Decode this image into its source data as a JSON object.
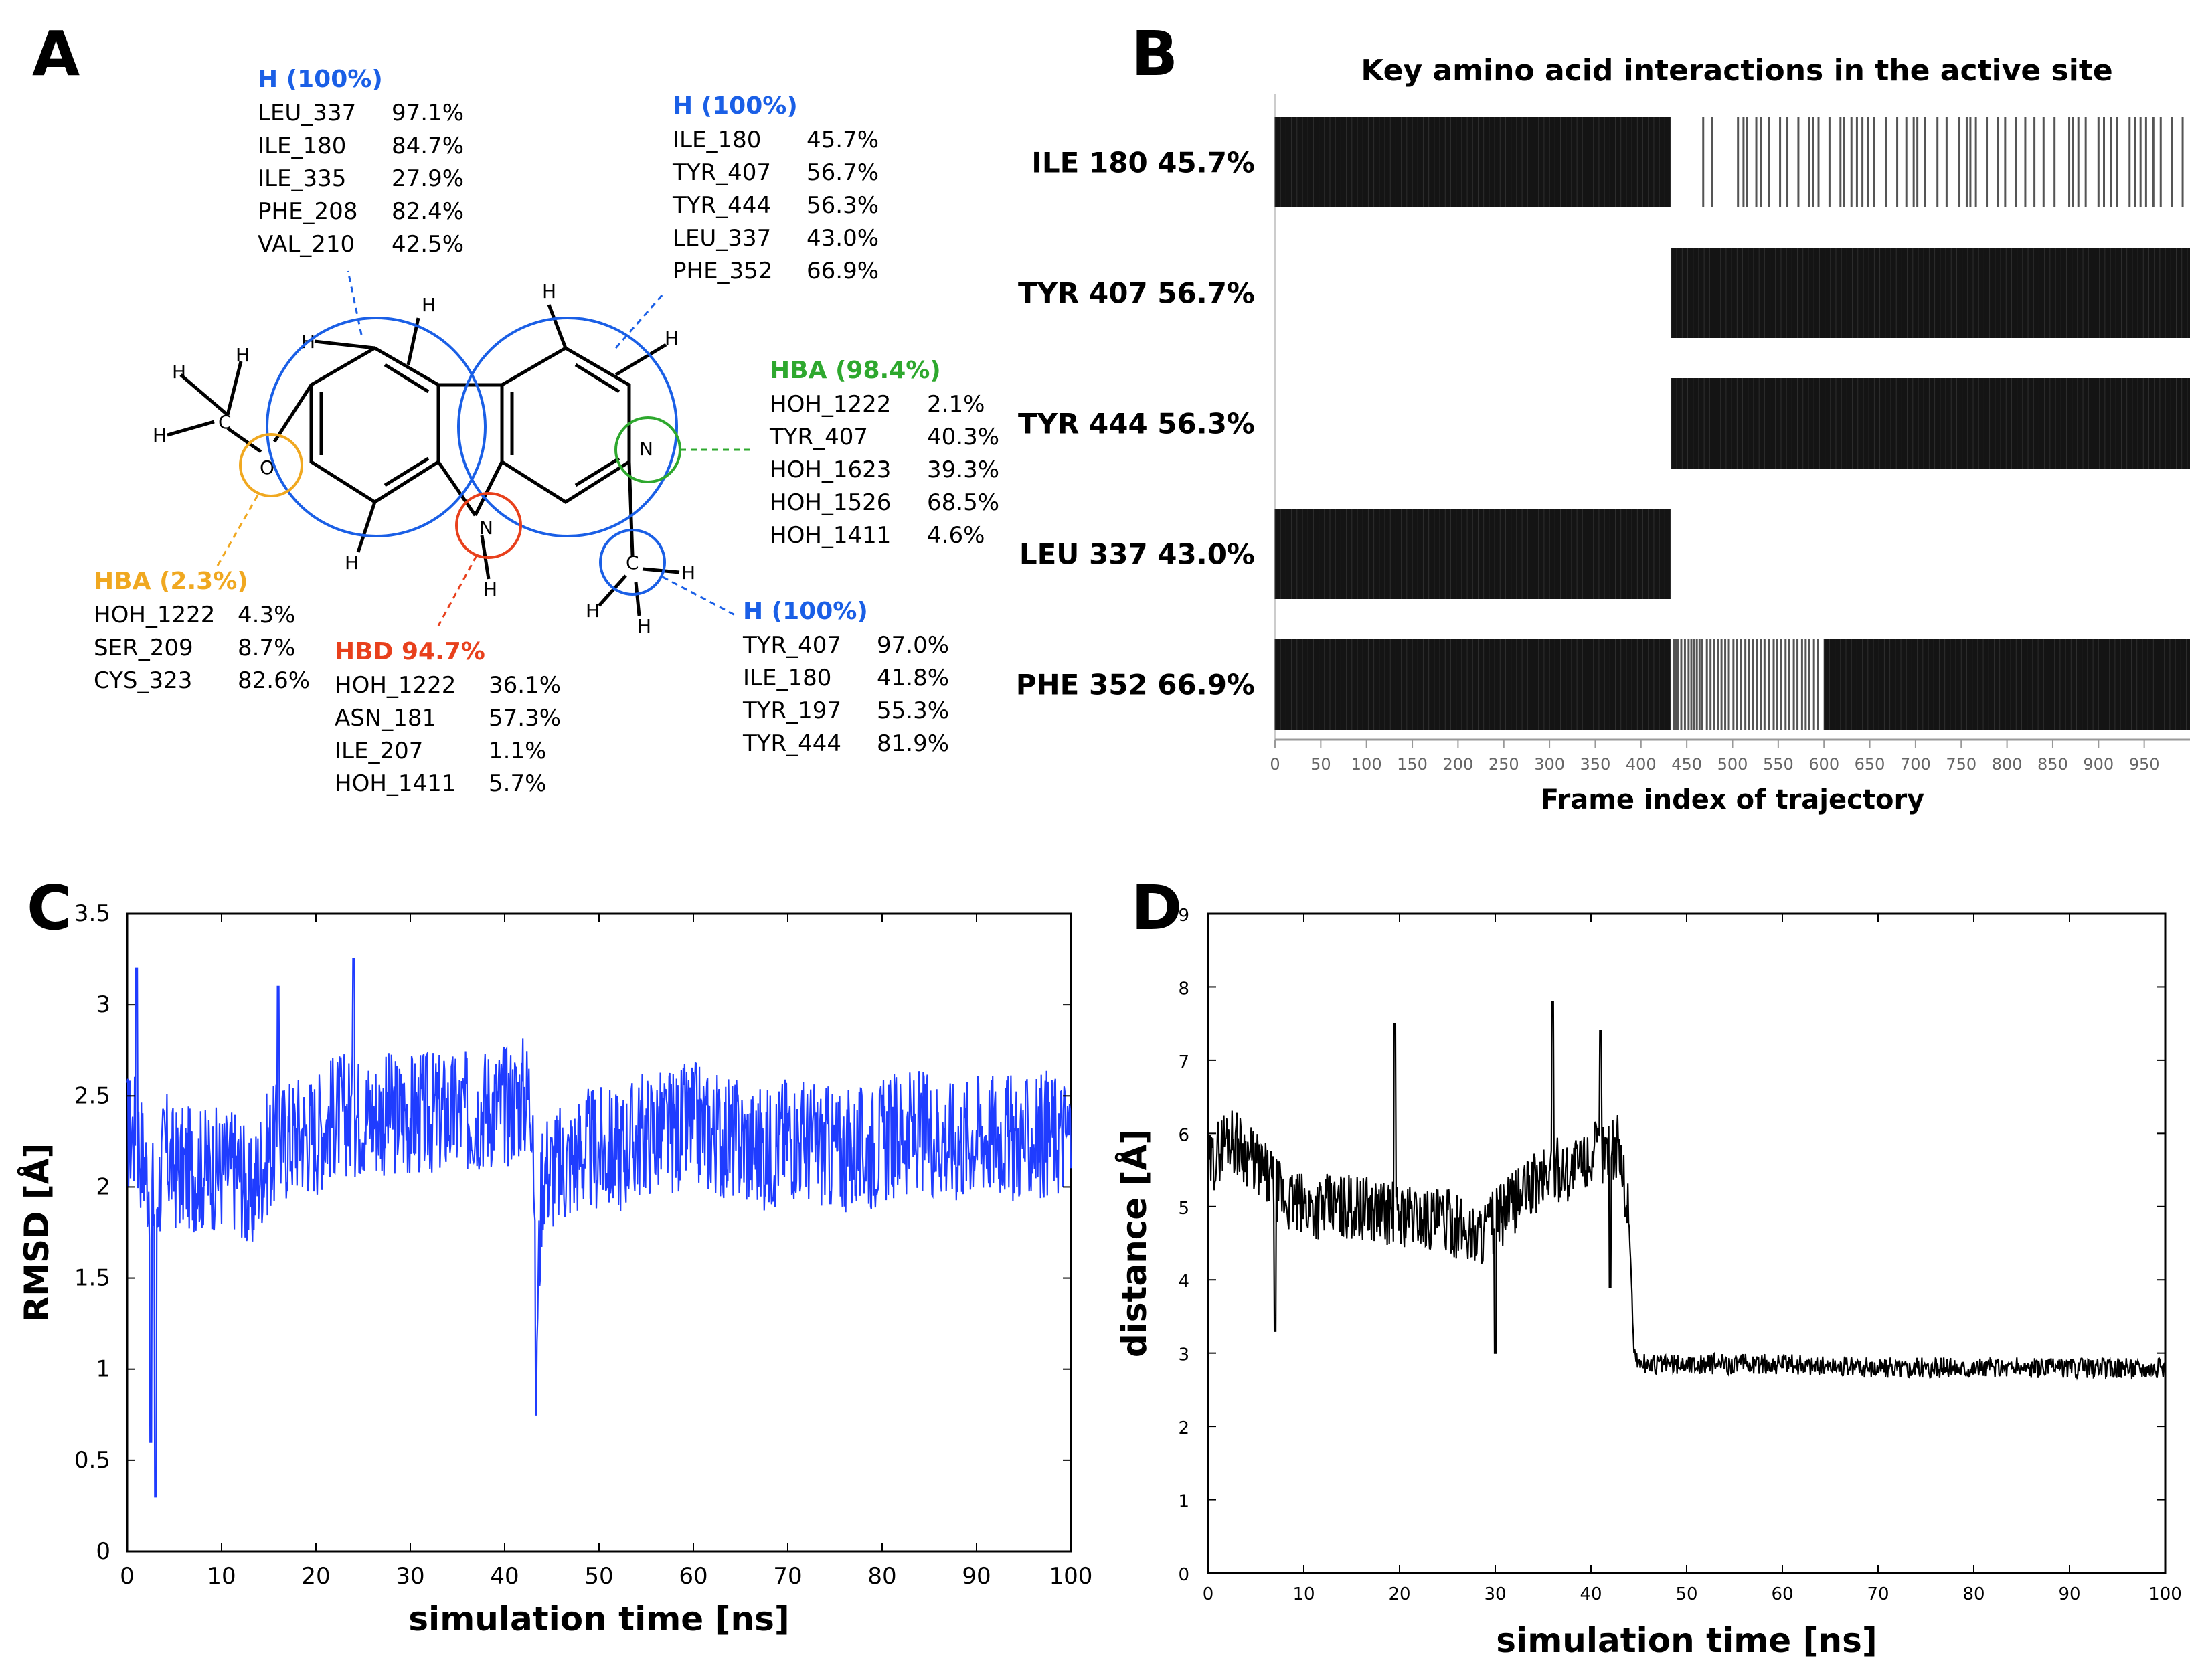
{
  "panels": {
    "A": "A",
    "B": "B",
    "C": "C",
    "D": "D"
  },
  "panelA": {
    "atoms": {
      "H": "H",
      "C": "C",
      "O": "O",
      "N": "N"
    },
    "groups": [
      {
        "id": "hyd_left",
        "title": "H (100%)",
        "color": "#1a5fe6",
        "rows": [
          [
            "LEU_337",
            "97.1%"
          ],
          [
            "ILE_180",
            "84.7%"
          ],
          [
            "ILE_335",
            "27.9%"
          ],
          [
            "PHE_208",
            "82.4%"
          ],
          [
            "VAL_210",
            "42.5%"
          ]
        ]
      },
      {
        "id": "hyd_right",
        "title": "H (100%)",
        "color": "#1a5fe6",
        "rows": [
          [
            "ILE_180",
            "45.7%"
          ],
          [
            "TYR_407",
            "56.7%"
          ],
          [
            "TYR_444",
            "56.3%"
          ],
          [
            "LEU_337",
            "43.0%"
          ],
          [
            "PHE_352",
            "66.9%"
          ]
        ]
      },
      {
        "id": "hba_n",
        "title": "HBA (98.4%)",
        "color": "#2ea82e",
        "rows": [
          [
            "HOH_1222",
            "2.1%"
          ],
          [
            "TYR_407",
            "40.3%"
          ],
          [
            "HOH_1623",
            "39.3%"
          ],
          [
            "HOH_1526",
            "68.5%"
          ],
          [
            "HOH_1411",
            "4.6%"
          ]
        ]
      },
      {
        "id": "hba_o",
        "title": "HBA (2.3%)",
        "color": "#f0a820",
        "rows": [
          [
            "HOH_1222",
            "4.3%"
          ],
          [
            "SER_209",
            "8.7%"
          ],
          [
            "CYS_323",
            "82.6%"
          ]
        ]
      },
      {
        "id": "hbd",
        "title": "HBD 94.7%",
        "color": "#e8401c",
        "rows": [
          [
            "HOH_1222",
            "36.1%"
          ],
          [
            "ASN_181",
            "57.3%"
          ],
          [
            "ILE_207",
            "1.1%"
          ],
          [
            "HOH_1411",
            "5.7%"
          ]
        ]
      },
      {
        "id": "hyd_methyl",
        "title": "H (100%)",
        "color": "#1a5fe6",
        "rows": [
          [
            "TYR_407",
            "97.0%"
          ],
          [
            "ILE_180",
            "41.8%"
          ],
          [
            "TYR_197",
            "55.3%"
          ],
          [
            "TYR_444",
            "81.9%"
          ]
        ]
      }
    ]
  },
  "chart_data": [
    {
      "type": "heatmap",
      "panel": "B",
      "title": "Key amino acid interactions in the active site",
      "xlabel": "Frame index of trajectory",
      "xlim": [
        0,
        1000
      ],
      "xticks": [
        0,
        50,
        100,
        150,
        200,
        250,
        300,
        350,
        400,
        450,
        500,
        550,
        600,
        650,
        700,
        750,
        800,
        850,
        900,
        950
      ],
      "rows": [
        {
          "label": "ILE 180 45.7%",
          "solid": [
            [
              0,
              433
            ]
          ],
          "sparse_lines": [
            468,
            478,
            506,
            512,
            516,
            526,
            531,
            540,
            552,
            560,
            572,
            584,
            588,
            594,
            606,
            618,
            622,
            630,
            636,
            642,
            648,
            655,
            668,
            680,
            690,
            698,
            702,
            710,
            724,
            734,
            748,
            756,
            760,
            766,
            778,
            790,
            798,
            810,
            820,
            830,
            840,
            852,
            868,
            872,
            878,
            886,
            900,
            906,
            914,
            920,
            934,
            940,
            946,
            952,
            960,
            968,
            980,
            992
          ]
        },
        {
          "label": "TYR 407 56.7%",
          "solid": [
            [
              433,
              1000
            ]
          ],
          "sparse_lines": []
        },
        {
          "label": "TYR 444 56.3%",
          "solid": [
            [
              433,
              1000
            ]
          ],
          "sparse_lines": []
        },
        {
          "label": "LEU 337 43.0%",
          "solid": [
            [
              0,
              433
            ]
          ],
          "sparse_lines": []
        },
        {
          "label": "PHE 352 66.9%",
          "solid": [
            [
              0,
              433
            ],
            [
              600,
              1000
            ]
          ],
          "sparse_lines": [
            436,
            438,
            440,
            444,
            448,
            452,
            455,
            458,
            461,
            464,
            467,
            472,
            476,
            480,
            484,
            488,
            492,
            496,
            501,
            505,
            509,
            514,
            518,
            522,
            527,
            531,
            535,
            540,
            545,
            549,
            553,
            558,
            562,
            567,
            571,
            576,
            580,
            584,
            589,
            593
          ]
        }
      ]
    },
    {
      "type": "line",
      "panel": "C",
      "series_color": "#1f3cff",
      "xlabel": "simulation time [ns]",
      "ylabel": "RMSD [Å]",
      "xlim": [
        0,
        100
      ],
      "ylim": [
        0,
        3.5
      ],
      "xticks": [
        0,
        10,
        20,
        30,
        40,
        50,
        60,
        70,
        80,
        90,
        100
      ],
      "yticks": [
        0,
        0.5,
        1,
        1.5,
        2,
        2.5,
        3,
        3.5
      ],
      "series": [
        {
          "name": "RMSD",
          "x": [
            0,
            1,
            2,
            3,
            4,
            5,
            6,
            8,
            10,
            12,
            13,
            14,
            15,
            18,
            20,
            22,
            24,
            26,
            28,
            30,
            32,
            34,
            36,
            38,
            40,
            42,
            43,
            43.3,
            44,
            46,
            48,
            50,
            52,
            55,
            58,
            60,
            62,
            65,
            68,
            70,
            72,
            75,
            78,
            80,
            82,
            85,
            88,
            90,
            92,
            95,
            98,
            100
          ],
          "y": [
            2.3,
            2.3,
            2.1,
            1.9,
            2.2,
            2.1,
            2.1,
            2.1,
            2.1,
            2.1,
            1.9,
            2.1,
            2.2,
            2.3,
            2.3,
            2.4,
            2.4,
            2.4,
            2.4,
            2.4,
            2.4,
            2.4,
            2.4,
            2.45,
            2.45,
            2.5,
            2.5,
            1.1,
            2.1,
            2.1,
            2.2,
            2.2,
            2.2,
            2.3,
            2.3,
            2.35,
            2.3,
            2.25,
            2.2,
            2.3,
            2.25,
            2.2,
            2.2,
            2.25,
            2.3,
            2.3,
            2.25,
            2.3,
            2.3,
            2.25,
            2.3,
            2.3
          ],
          "noise": 0.35,
          "spikes": [
            [
              3,
              0.3
            ],
            [
              2.5,
              0.6
            ],
            [
              43.3,
              0.75
            ],
            [
              24,
              3.25
            ],
            [
              16,
              3.1
            ],
            [
              1,
              3.2
            ]
          ]
        }
      ]
    },
    {
      "type": "line",
      "panel": "D",
      "series_color": "#000000",
      "xlabel": "simulation time [ns]",
      "ylabel": "distance [Å]",
      "xlim": [
        0,
        100
      ],
      "ylim": [
        0,
        9
      ],
      "xticks": [
        0,
        10,
        20,
        30,
        40,
        50,
        60,
        70,
        80,
        90,
        100
      ],
      "yticks": [
        0,
        1,
        2,
        3,
        4,
        5,
        6,
        7,
        8,
        9
      ],
      "series": [
        {
          "name": "distance",
          "x": [
            0,
            2,
            5,
            8,
            10,
            15,
            20,
            25,
            28,
            30,
            33,
            36,
            38,
            40,
            42,
            43,
            44,
            44.5,
            45,
            50,
            60,
            70,
            80,
            90,
            100
          ],
          "y": [
            5.5,
            6.0,
            5.6,
            5.1,
            5.0,
            5.0,
            4.9,
            4.8,
            4.6,
            4.8,
            5.2,
            5.5,
            5.5,
            5.7,
            5.8,
            5.8,
            4.8,
            3.0,
            2.85,
            2.85,
            2.85,
            2.8,
            2.8,
            2.8,
            2.8
          ],
          "noise_left": 0.45,
          "noise_right": 0.14,
          "spikes": [
            [
              36,
              7.8
            ],
            [
              41,
              7.4
            ],
            [
              19.5,
              7.5
            ],
            [
              30,
              3.0
            ],
            [
              7,
              3.3
            ],
            [
              42,
              3.9
            ]
          ]
        }
      ]
    }
  ]
}
